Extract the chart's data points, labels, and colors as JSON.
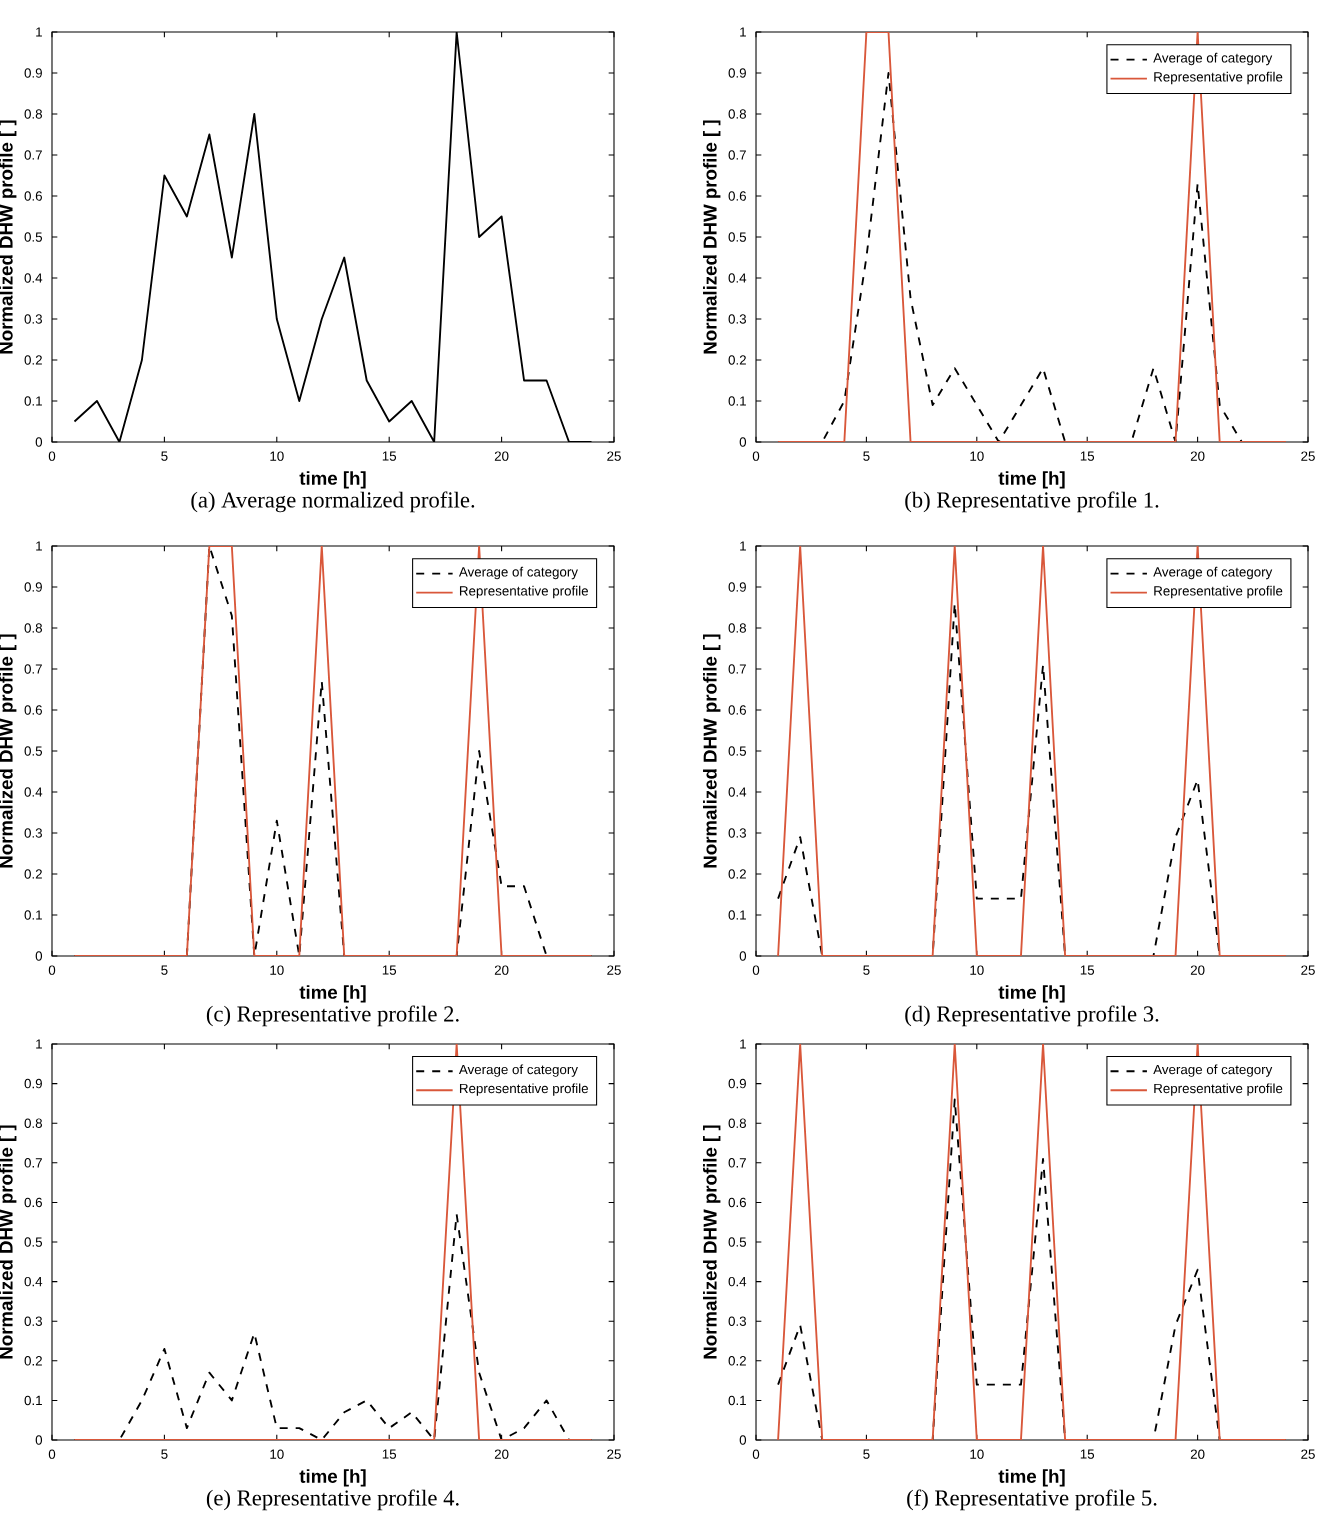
{
  "chart_data": [
    {
      "type": "line",
      "title": "(a) Average normalized profile.",
      "xlabel": "time [h]",
      "ylabel": "Normalized DHW profile [ ]",
      "x": [
        1,
        2,
        3,
        4,
        5,
        6,
        7,
        8,
        9,
        10,
        11,
        12,
        13,
        14,
        15,
        16,
        17,
        18,
        19,
        20,
        21,
        22,
        23,
        24
      ],
      "xlim": [
        0,
        25
      ],
      "ylim": [
        0,
        1
      ],
      "xticks": [
        0,
        5,
        10,
        15,
        20,
        25
      ],
      "yticks": [
        0,
        0.1,
        0.2,
        0.3,
        0.4,
        0.5,
        0.6,
        0.7,
        0.8,
        0.9,
        1
      ],
      "legend": false,
      "series": [
        {
          "color": "#000000",
          "line_style": "solid",
          "values": [
            0.05,
            0.1,
            0,
            0.2,
            0.65,
            0.55,
            0.75,
            0.45,
            0.8,
            0.3,
            0.1,
            0.3,
            0.45,
            0.15,
            0.05,
            0.1,
            0,
            1,
            0.5,
            0.55,
            0.15,
            0.15,
            0,
            0
          ]
        }
      ]
    },
    {
      "type": "line",
      "title": "(b) Representative profile 1.",
      "xlabel": "time [h]",
      "ylabel": "Normalized DHW profile [ ]",
      "x": [
        1,
        2,
        3,
        4,
        5,
        6,
        7,
        8,
        9,
        10,
        11,
        12,
        13,
        14,
        15,
        16,
        17,
        18,
        19,
        20,
        21,
        22,
        23,
        24
      ],
      "xlim": [
        0,
        25
      ],
      "ylim": [
        0,
        1
      ],
      "xticks": [
        0,
        5,
        10,
        15,
        20,
        25
      ],
      "yticks": [
        0,
        0.1,
        0.2,
        0.3,
        0.4,
        0.5,
        0.6,
        0.7,
        0.8,
        0.9,
        1
      ],
      "legend": "top right",
      "series": [
        {
          "name": "Average of category",
          "color": "#000000",
          "line_style": "dashed",
          "values": [
            0,
            0,
            0,
            0.1,
            0.45,
            0.9,
            0.35,
            0.09,
            0.18,
            0.09,
            0,
            0.09,
            0.18,
            0,
            0,
            0,
            0,
            0.18,
            0,
            0.63,
            0.09,
            0,
            0,
            0
          ]
        },
        {
          "name": "Representative profile",
          "color": "#d9573a",
          "line_style": "solid",
          "values": [
            0,
            0,
            0,
            0,
            1,
            1,
            0,
            0,
            0,
            0,
            0,
            0,
            0,
            0,
            0,
            0,
            0,
            0,
            0,
            1,
            0,
            0,
            0,
            0
          ]
        }
      ]
    },
    {
      "type": "line",
      "title": "(c) Representative profile 2.",
      "xlabel": "time [h]",
      "ylabel": "Normalized DHW profile [ ]",
      "x": [
        1,
        2,
        3,
        4,
        5,
        6,
        7,
        8,
        9,
        10,
        11,
        12,
        13,
        14,
        15,
        16,
        17,
        18,
        19,
        20,
        21,
        22,
        23,
        24
      ],
      "xlim": [
        0,
        25
      ],
      "ylim": [
        0,
        1
      ],
      "xticks": [
        0,
        5,
        10,
        15,
        20,
        25
      ],
      "yticks": [
        0,
        0.1,
        0.2,
        0.3,
        0.4,
        0.5,
        0.6,
        0.7,
        0.8,
        0.9,
        1
      ],
      "legend": "top right",
      "series": [
        {
          "name": "Average of category",
          "color": "#000000",
          "line_style": "dashed",
          "values": [
            0,
            0,
            0,
            0,
            0,
            0,
            1,
            0.83,
            0,
            0.33,
            0,
            0.67,
            0,
            0,
            0,
            0,
            0,
            0,
            0.5,
            0.17,
            0.17,
            0,
            0,
            0
          ]
        },
        {
          "name": "Representative profile",
          "color": "#d9573a",
          "line_style": "solid",
          "values": [
            0,
            0,
            0,
            0,
            0,
            0,
            1,
            1,
            0,
            0,
            0,
            1,
            0,
            0,
            0,
            0,
            0,
            0,
            1,
            0,
            0,
            0,
            0,
            0
          ]
        }
      ]
    },
    {
      "type": "line",
      "title": "(d) Representative profile 3.",
      "xlabel": "time [h]",
      "ylabel": "Normalized DHW profile [ ]",
      "x": [
        1,
        2,
        3,
        4,
        5,
        6,
        7,
        8,
        9,
        10,
        11,
        12,
        13,
        14,
        15,
        16,
        17,
        18,
        19,
        20,
        21,
        22,
        23,
        24
      ],
      "xlim": [
        0,
        25
      ],
      "ylim": [
        0,
        1
      ],
      "xticks": [
        0,
        5,
        10,
        15,
        20,
        25
      ],
      "yticks": [
        0,
        0.1,
        0.2,
        0.3,
        0.4,
        0.5,
        0.6,
        0.7,
        0.8,
        0.9,
        1
      ],
      "legend": "top right",
      "series": [
        {
          "name": "Average of category",
          "color": "#000000",
          "line_style": "dashed",
          "values": [
            0.14,
            0.29,
            0,
            0,
            0,
            0,
            0,
            0,
            0.86,
            0.14,
            0.14,
            0.14,
            0.71,
            0,
            0,
            0,
            0,
            0,
            0.29,
            0.43,
            0,
            0,
            0,
            0
          ]
        },
        {
          "name": "Representative profile",
          "color": "#d9573a",
          "line_style": "solid",
          "values": [
            0,
            1,
            0,
            0,
            0,
            0,
            0,
            0,
            1,
            0,
            0,
            0,
            1,
            0,
            0,
            0,
            0,
            0,
            0,
            1,
            0,
            0,
            0,
            0
          ]
        }
      ]
    },
    {
      "type": "line",
      "title": "(e) Representative profile 4.",
      "xlabel": "time [h]",
      "ylabel": "Normalized DHW profile [ ]",
      "x": [
        1,
        2,
        3,
        4,
        5,
        6,
        7,
        8,
        9,
        10,
        11,
        12,
        13,
        14,
        15,
        16,
        17,
        18,
        19,
        20,
        21,
        22,
        23,
        24
      ],
      "xlim": [
        0,
        25
      ],
      "ylim": [
        0,
        1
      ],
      "xticks": [
        0,
        5,
        10,
        15,
        20,
        25
      ],
      "yticks": [
        0,
        0.1,
        0.2,
        0.3,
        0.4,
        0.5,
        0.6,
        0.7,
        0.8,
        0.9,
        1
      ],
      "legend": "top right",
      "series": [
        {
          "name": "Average of category",
          "color": "#000000",
          "line_style": "dashed",
          "values": [
            0,
            0,
            0,
            0.1,
            0.23,
            0.03,
            0.17,
            0.1,
            0.27,
            0.03,
            0.03,
            0,
            0.07,
            0.1,
            0.03,
            0.07,
            0,
            0.57,
            0.17,
            0,
            0.03,
            0.1,
            0,
            0
          ]
        },
        {
          "name": "Representative profile",
          "color": "#d9573a",
          "line_style": "solid",
          "values": [
            0,
            0,
            0,
            0,
            0,
            0,
            0,
            0,
            0,
            0,
            0,
            0,
            0,
            0,
            0,
            0,
            0,
            1,
            0,
            0,
            0,
            0,
            0,
            0
          ]
        }
      ]
    },
    {
      "type": "line",
      "title": "(f) Representative profile 5.",
      "xlabel": "time [h]",
      "ylabel": "Normalized DHW profile [ ]",
      "x": [
        1,
        2,
        3,
        4,
        5,
        6,
        7,
        8,
        9,
        10,
        11,
        12,
        13,
        14,
        15,
        16,
        17,
        18,
        19,
        20,
        21,
        22,
        23,
        24
      ],
      "xlim": [
        0,
        25
      ],
      "ylim": [
        0,
        1
      ],
      "xticks": [
        0,
        5,
        10,
        15,
        20,
        25
      ],
      "yticks": [
        0,
        0.1,
        0.2,
        0.3,
        0.4,
        0.5,
        0.6,
        0.7,
        0.8,
        0.9,
        1
      ],
      "legend": "top right",
      "series": [
        {
          "name": "Average of category",
          "color": "#000000",
          "line_style": "dashed",
          "values": [
            0.14,
            0.29,
            0,
            0,
            0,
            0,
            0,
            0,
            0.86,
            0.14,
            0.14,
            0.14,
            0.71,
            0,
            0,
            0,
            0,
            0,
            0.29,
            0.43,
            0,
            0,
            0,
            0
          ]
        },
        {
          "name": "Representative profile",
          "color": "#d9573a",
          "line_style": "solid",
          "values": [
            0,
            1,
            0,
            0,
            0,
            0,
            0,
            0,
            1,
            0,
            0,
            0,
            1,
            0,
            0,
            0,
            0,
            0,
            0,
            1,
            0,
            0,
            0,
            0
          ]
        }
      ]
    }
  ]
}
